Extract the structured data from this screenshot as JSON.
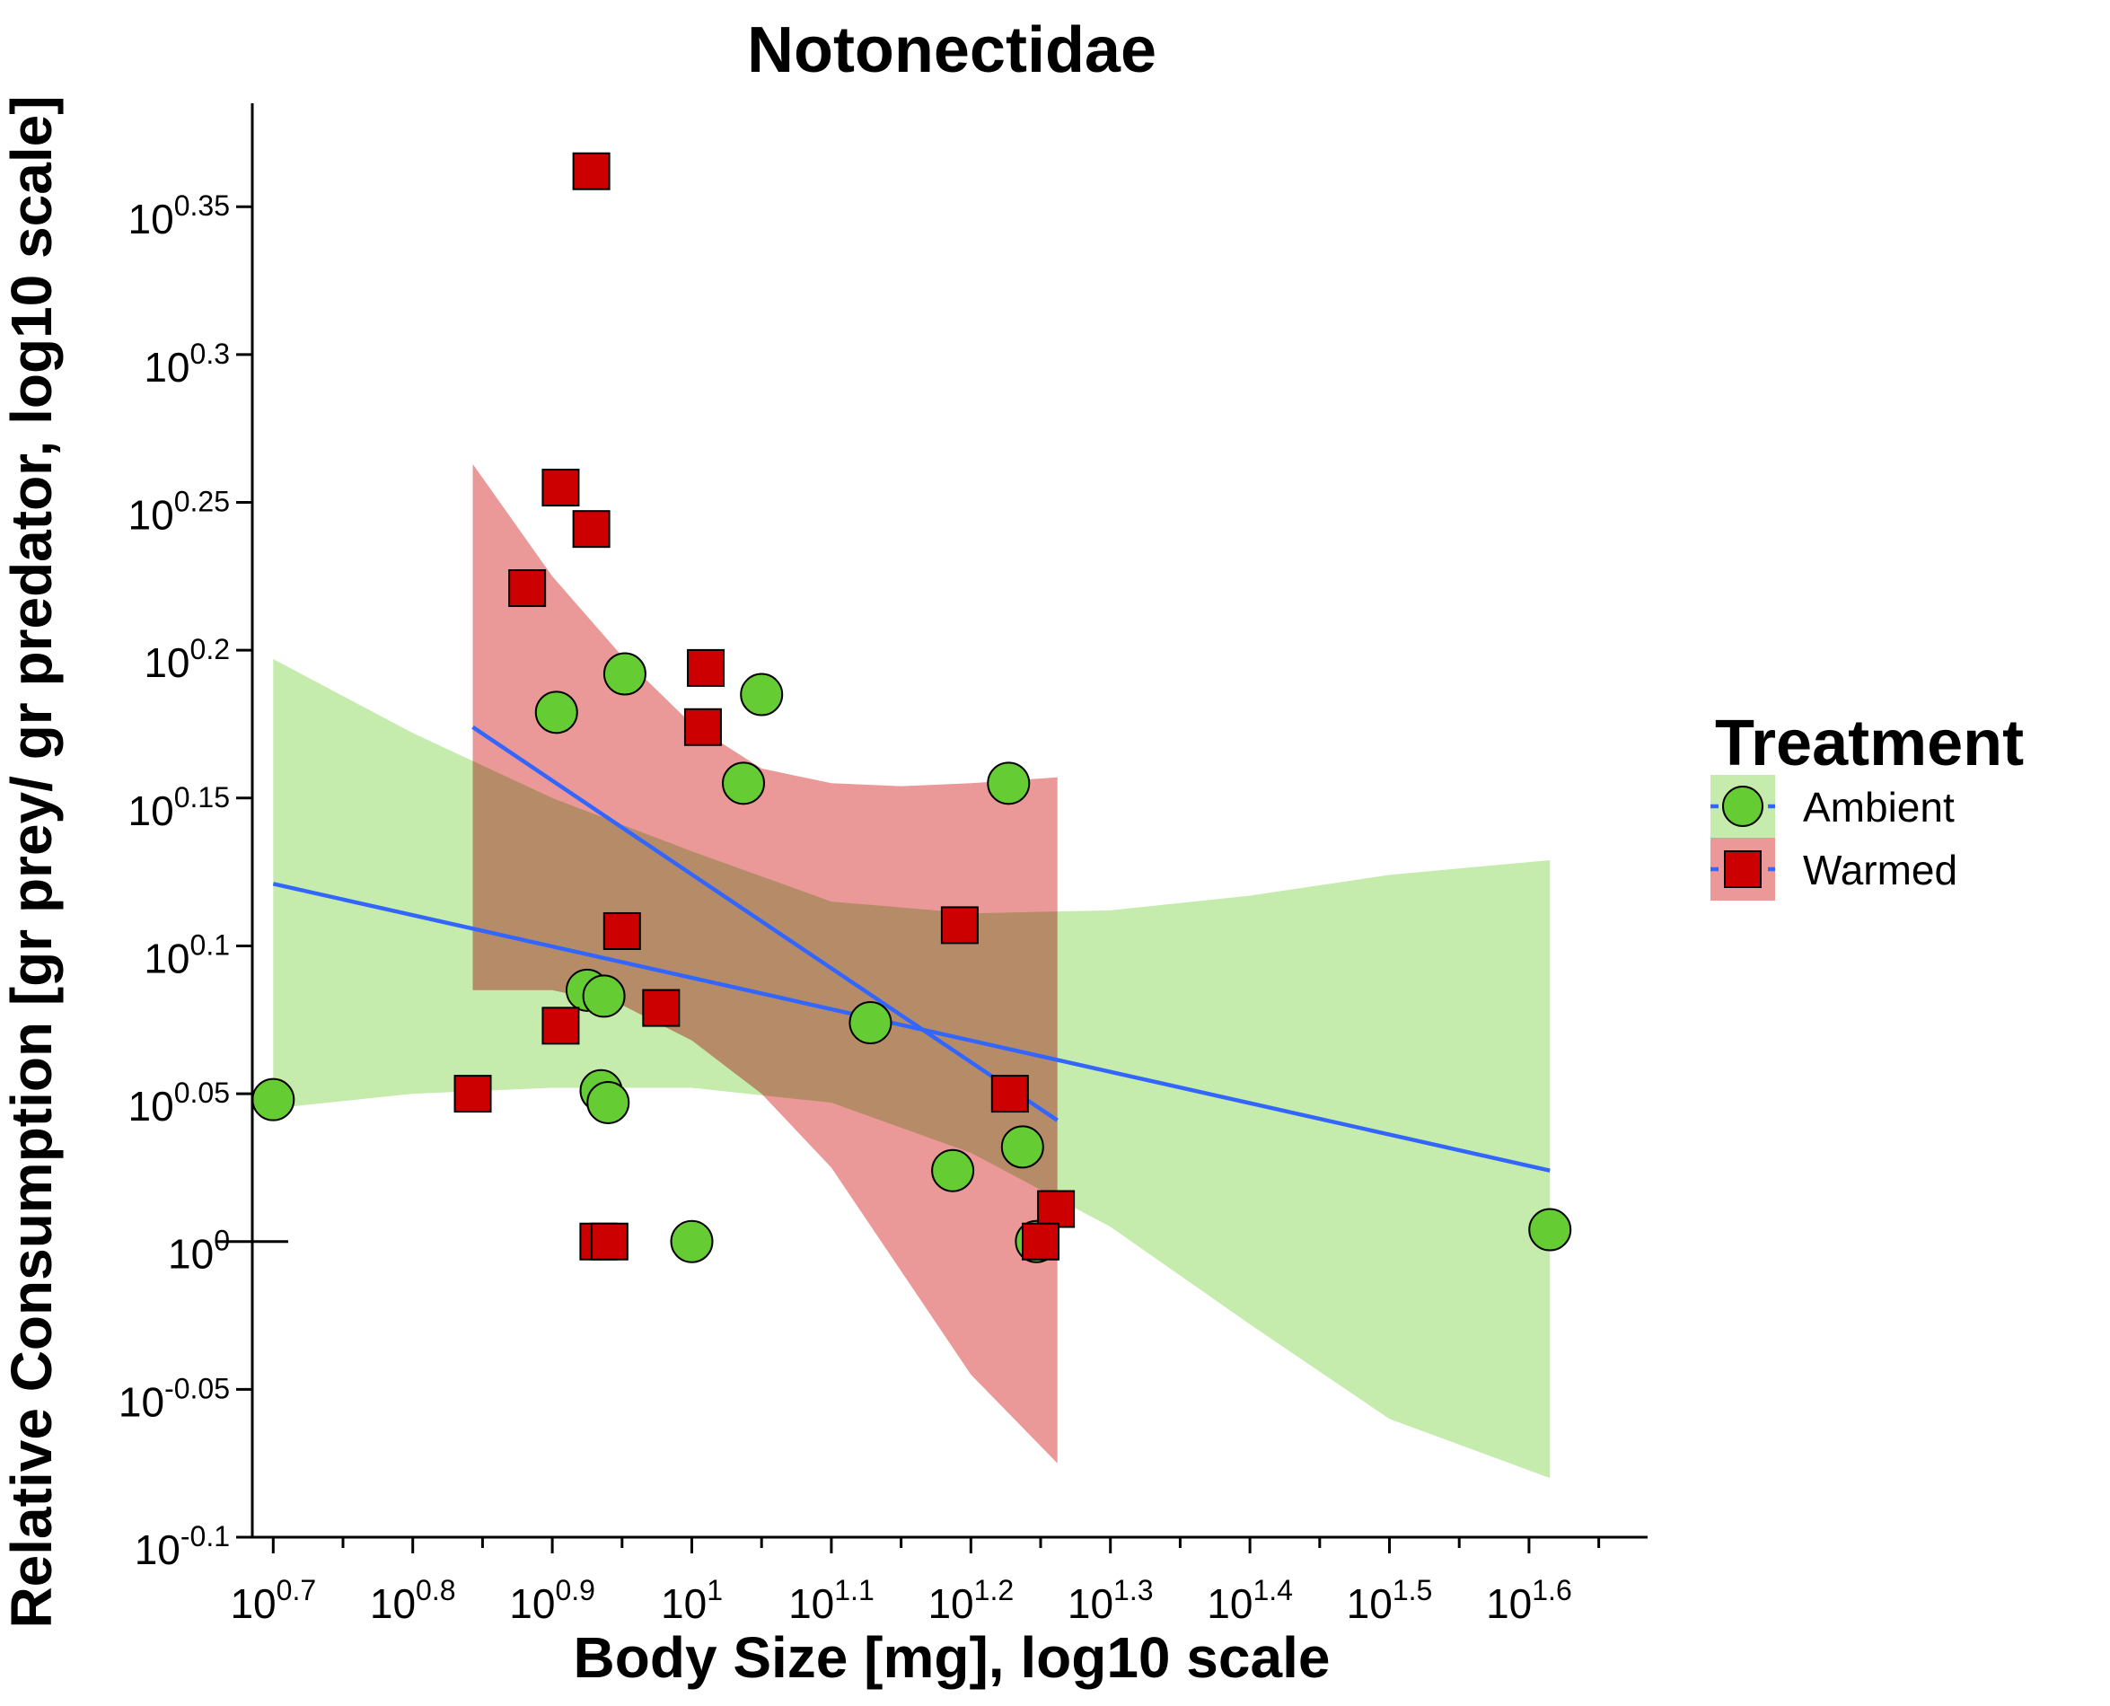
{
  "chart_data": {
    "type": "scatter",
    "title": "Notonectidae",
    "xlabel": "Body Size [mg], log10 scale",
    "ylabel": "Relative Consumption [gr prey/ gr predator, log10 scale]",
    "x_scale": "log10",
    "y_scale": "log10",
    "xlim_exponent": [
      0.685,
      1.685
    ],
    "ylim_exponent": [
      -0.1,
      0.385
    ],
    "x_tick_exponents": [
      "0.7",
      "0.8",
      "0.9",
      "1",
      "1.1",
      "1.2",
      "1.3",
      "1.4",
      "1.5",
      "1.6"
    ],
    "y_tick_exponents": [
      "-0.1",
      "-0.05",
      "0",
      "0.05",
      "0.1",
      "0.15",
      "0.2",
      "0.25",
      "0.3",
      "0.35"
    ],
    "tick_base": "10",
    "grid": false,
    "legend": {
      "title": "Treatment",
      "position": "right"
    },
    "series": [
      {
        "name": "Ambient",
        "marker": "circle",
        "color": "#66cc33",
        "points_log10": [
          [
            0.7,
            0.048
          ],
          [
            0.903,
            0.179
          ],
          [
            0.952,
            0.192
          ],
          [
            1.05,
            0.185
          ],
          [
            1.037,
            0.155
          ],
          [
            1.227,
            0.155
          ],
          [
            0.925,
            0.085
          ],
          [
            0.937,
            0.083
          ],
          [
            1.128,
            0.074
          ],
          [
            0.935,
            0.051
          ],
          [
            0.94,
            0.047
          ],
          [
            1.187,
            0.024
          ],
          [
            1.237,
            0.032
          ],
          [
            1.0,
            0.0
          ],
          [
            1.247,
            0.0
          ],
          [
            1.615,
            0.004
          ]
        ],
        "fit_log10": {
          "x": [
            0.7,
            1.615
          ],
          "y": [
            0.121,
            0.024
          ]
        },
        "band_log10": {
          "x": [
            0.7,
            0.8,
            0.9,
            1.0,
            1.1,
            1.2,
            1.3,
            1.4,
            1.5,
            1.615
          ],
          "lower": [
            0.045,
            0.05,
            0.052,
            0.052,
            0.047,
            0.03,
            0.005,
            -0.028,
            -0.06,
            -0.08
          ],
          "upper": [
            0.197,
            0.172,
            0.15,
            0.132,
            0.115,
            0.111,
            0.112,
            0.117,
            0.124,
            0.129
          ]
        }
      },
      {
        "name": "Warmed",
        "marker": "square",
        "color": "#cc0000",
        "points_log10": [
          [
            0.928,
            0.362
          ],
          [
            0.906,
            0.255
          ],
          [
            0.928,
            0.241
          ],
          [
            0.882,
            0.221
          ],
          [
            1.01,
            0.194
          ],
          [
            1.008,
            0.174
          ],
          [
            0.95,
            0.105
          ],
          [
            1.192,
            0.107
          ],
          [
            0.978,
            0.079
          ],
          [
            0.906,
            0.073
          ],
          [
            0.843,
            0.05
          ],
          [
            1.228,
            0.05
          ],
          [
            1.261,
            0.011
          ],
          [
            0.933,
            0.0
          ],
          [
            0.941,
            0.0
          ],
          [
            1.25,
            0.0
          ]
        ],
        "fit_log10": {
          "x": [
            0.843,
            1.262
          ],
          "y": [
            0.174,
            0.041
          ]
        },
        "band_log10": {
          "x": [
            0.843,
            0.9,
            0.95,
            1.0,
            1.05,
            1.1,
            1.15,
            1.2,
            1.262
          ],
          "lower": [
            0.085,
            0.085,
            0.08,
            0.068,
            0.05,
            0.025,
            -0.01,
            -0.045,
            -0.075
          ],
          "upper": [
            0.263,
            0.225,
            0.198,
            0.175,
            0.16,
            0.155,
            0.154,
            0.155,
            0.157
          ]
        }
      }
    ],
    "fit_line_color": "#3366ff",
    "band_colors": {
      "Ambient": "#c5ebad",
      "Warmed": "#ea9898",
      "overlap": "#c4895f"
    }
  }
}
